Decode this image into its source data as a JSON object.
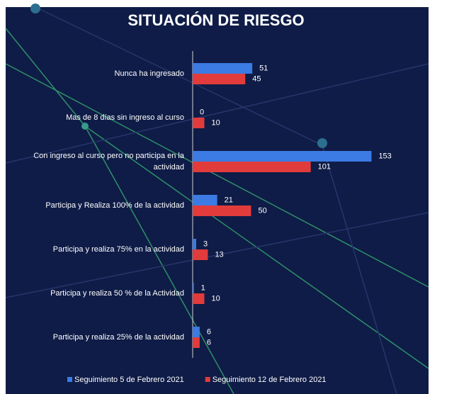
{
  "chart_data": {
    "type": "bar",
    "orientation": "horizontal",
    "title": "SITUACIÓN DE RIESGO",
    "categories": [
      "Nunca ha ingresado",
      "Mas de 8 días sin ingreso al curso",
      "Con ingreso al curso pero no participa en la actividad",
      "Participa y Realiza 100% de la actividad",
      "Participa y realiza 75% en la actividad",
      "Participa y realiza 50 % de la Actividad",
      "Participa y realiza 25% de la actividad"
    ],
    "series": [
      {
        "name": "Seguimiento  5 de Febrero 2021",
        "color": "#3b7be3",
        "values": [
          51,
          0,
          153,
          21,
          3,
          1,
          6
        ]
      },
      {
        "name": "Seguimiento  12 de Febrero 2021",
        "color": "#e23b3b",
        "values": [
          45,
          10,
          101,
          50,
          13,
          10,
          6
        ]
      }
    ],
    "xlim": [
      0,
      200
    ],
    "legend": "bottom"
  }
}
